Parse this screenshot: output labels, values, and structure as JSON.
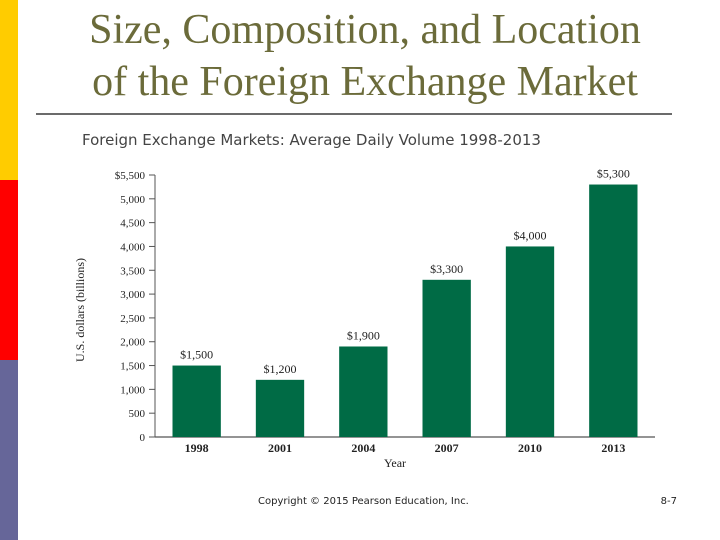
{
  "slide": {
    "title_line1": "Size, Composition, and Location",
    "title_line2": "of the Foreign Exchange Market",
    "copyright": "Copyright © 2015 Pearson Education, Inc.",
    "page_number": "8-7"
  },
  "colors": {
    "title": "#6b6b3a",
    "bar": "#006b45",
    "side_yellow": "#ffcc00",
    "side_red": "#ff0000",
    "side_blue": "#666699"
  },
  "chart_data": {
    "type": "bar",
    "title": "Foreign Exchange Markets: Average Daily Volume 1998-2013",
    "categories": [
      "1998",
      "2001",
      "2004",
      "2007",
      "2010",
      "2013"
    ],
    "values": [
      1500,
      1200,
      1900,
      3300,
      4000,
      5300
    ],
    "value_labels": [
      "$1,500",
      "$1,200",
      "$1,900",
      "$3,300",
      "$4,000",
      "$5,300"
    ],
    "xlabel": "Year",
    "ylabel": "U.S. dollars (billions)",
    "ylim": [
      0,
      5500
    ],
    "yticks": [
      0,
      500,
      1000,
      1500,
      2000,
      2500,
      3000,
      3500,
      4000,
      4500,
      5000,
      5500
    ],
    "ytick_labels": [
      "0",
      "500",
      "1,000",
      "1,500",
      "2,000",
      "2,500",
      "3,000",
      "3,500",
      "4,000",
      "4,500",
      "5,000",
      "$5,500"
    ],
    "grid": false
  }
}
